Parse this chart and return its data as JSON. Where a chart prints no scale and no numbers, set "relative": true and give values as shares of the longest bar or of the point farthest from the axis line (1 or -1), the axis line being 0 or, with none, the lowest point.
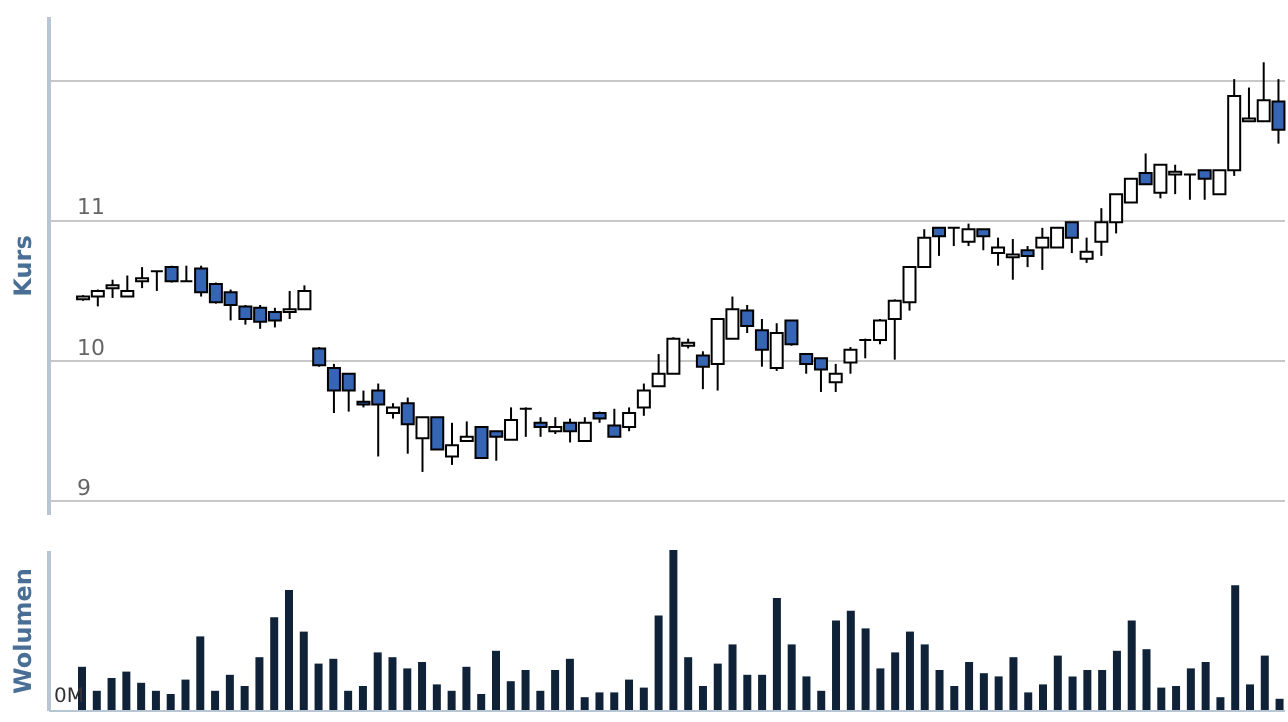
{
  "chart_data": [
    {
      "type": "candlestick",
      "ylabel": "Kurs",
      "colors": [
        "#ffffff",
        "#ffffff",
        "#ffffff",
        "#ffffff",
        "#ffffff",
        "#000000",
        "#3565b4",
        "#000000",
        "#3565b4",
        "#3565b4",
        "#3565b4",
        "#3565b4",
        "#3565b4",
        "#3565b4",
        "#ffffff",
        "#ffffff",
        "#3565b4",
        "#3565b4",
        "#3565b4",
        "#3565b4",
        "#3565b4",
        "#ffffff",
        "#3565b4",
        "#ffffff",
        "#3565b4",
        "#ffffff",
        "#ffffff",
        "#3565b4",
        "#3565b4",
        "#ffffff",
        "#000000",
        "#3565b4",
        "#ffffff",
        "#3565b4",
        "#ffffff",
        "#3565b4",
        "#3565b4",
        "#ffffff",
        "#ffffff",
        "#ffffff",
        "#ffffff",
        "#ffffff",
        "#3565b4",
        "#ffffff",
        "#ffffff",
        "#3565b4",
        "#3565b4",
        "#ffffff",
        "#3565b4",
        "#3565b4",
        "#3565b4",
        "#ffffff",
        "#ffffff",
        "#000000",
        "#ffffff",
        "#ffffff",
        "#ffffff",
        "#ffffff",
        "#3565b4",
        "#000000",
        "#ffffff",
        "#3565b4",
        "#ffffff",
        "#ffffff",
        "#3565b4",
        "#ffffff",
        "#ffffff",
        "#3565b4",
        "#ffffff",
        "#ffffff",
        "#ffffff",
        "#ffffff",
        "#3565b4",
        "#ffffff",
        "#ffffff",
        "#000000",
        "#3565b4",
        "#ffffff",
        "#ffffff",
        "#ffffff",
        "#ffffff",
        "#3565b4"
      ],
      "grid": "y",
      "ylim": [
        8.9,
        12.45
      ],
      "yticks": [
        9,
        10,
        11,
        {
          "value": 12,
          "label": null
        }
      ],
      "categories": [
        null,
        null,
        null,
        null,
        null,
        null,
        null,
        null,
        null,
        null,
        null,
        null,
        null,
        null,
        null,
        null,
        null,
        null,
        null,
        null,
        null,
        null,
        null,
        null,
        null,
        null,
        null,
        null,
        null,
        null,
        null,
        null,
        null,
        null,
        null,
        null,
        null,
        null,
        null,
        null,
        null,
        null,
        null,
        null,
        null,
        null,
        null,
        null,
        null,
        null,
        null,
        null,
        null,
        null,
        null,
        null,
        null,
        null,
        null,
        null,
        null,
        null,
        null,
        null,
        null,
        null,
        null,
        null,
        null,
        null,
        null,
        null,
        null,
        null,
        null,
        null,
        null,
        null,
        null,
        null,
        null,
        null
      ],
      "ohlc": [
        [
          10.43,
          10.46,
          10.42,
          10.45
        ],
        [
          10.45,
          10.5,
          10.38,
          10.49
        ],
        [
          10.51,
          10.57,
          10.44,
          10.53
        ],
        [
          10.45,
          10.6,
          10.45,
          10.49
        ],
        [
          10.56,
          10.66,
          10.51,
          10.58
        ],
        [
          10.63,
          10.63,
          10.49,
          10.63
        ],
        [
          10.66,
          10.67,
          10.55,
          10.56
        ],
        [
          10.56,
          10.67,
          10.56,
          10.56
        ],
        [
          10.65,
          10.67,
          10.45,
          10.48
        ],
        [
          10.54,
          10.55,
          10.4,
          10.41
        ],
        [
          10.48,
          10.5,
          10.28,
          10.39
        ],
        [
          10.38,
          10.39,
          10.25,
          10.29
        ],
        [
          10.37,
          10.39,
          10.22,
          10.27
        ],
        [
          10.34,
          10.37,
          10.23,
          10.28
        ],
        [
          10.34,
          10.49,
          10.29,
          10.36
        ],
        [
          10.36,
          10.53,
          10.36,
          10.49
        ],
        [
          10.08,
          10.09,
          9.95,
          9.96
        ],
        [
          9.94,
          9.97,
          9.62,
          9.78
        ],
        [
          9.9,
          9.9,
          9.63,
          9.78
        ],
        [
          9.7,
          9.78,
          9.66,
          9.68
        ],
        [
          9.78,
          9.83,
          9.31,
          9.68
        ],
        [
          9.62,
          9.69,
          9.58,
          9.66
        ],
        [
          9.69,
          9.73,
          9.33,
          9.54
        ],
        [
          9.44,
          9.59,
          9.2,
          9.59
        ],
        [
          9.59,
          9.59,
          9.36,
          9.36
        ],
        [
          9.31,
          9.55,
          9.25,
          9.39
        ],
        [
          9.42,
          9.56,
          9.42,
          9.45
        ],
        [
          9.52,
          9.52,
          9.3,
          9.3
        ],
        [
          9.49,
          9.49,
          9.28,
          9.45
        ],
        [
          9.43,
          9.66,
          9.43,
          9.57
        ],
        [
          9.65,
          9.66,
          9.45,
          9.65
        ],
        [
          9.55,
          9.59,
          9.45,
          9.52
        ],
        [
          9.49,
          9.59,
          9.47,
          9.52
        ],
        [
          9.55,
          9.58,
          9.41,
          9.49
        ],
        [
          9.42,
          9.59,
          9.42,
          9.55
        ],
        [
          9.62,
          9.63,
          9.55,
          9.58
        ],
        [
          9.53,
          9.65,
          9.45,
          9.45
        ],
        [
          9.52,
          9.66,
          9.49,
          9.62
        ],
        [
          9.66,
          9.83,
          9.6,
          9.78
        ],
        [
          9.81,
          10.04,
          9.81,
          9.9
        ],
        [
          9.9,
          10.16,
          9.9,
          10.15
        ],
        [
          10.1,
          10.15,
          10.08,
          10.12
        ],
        [
          10.03,
          10.06,
          9.79,
          9.95
        ],
        [
          9.97,
          10.29,
          9.78,
          10.29
        ],
        [
          10.15,
          10.45,
          10.15,
          10.36
        ],
        [
          10.35,
          10.39,
          10.19,
          10.24
        ],
        [
          10.21,
          10.29,
          9.95,
          10.07
        ],
        [
          9.94,
          10.26,
          9.92,
          10.19
        ],
        [
          10.28,
          10.28,
          10.1,
          10.11
        ],
        [
          10.04,
          10.04,
          9.9,
          9.97
        ],
        [
          10.01,
          10.01,
          9.77,
          9.93
        ],
        [
          9.84,
          9.97,
          9.77,
          9.9
        ],
        [
          9.98,
          10.09,
          9.9,
          10.07
        ],
        [
          10.14,
          10.15,
          10.01,
          10.14
        ],
        [
          10.14,
          10.29,
          10.11,
          10.28
        ],
        [
          10.29,
          10.43,
          10.0,
          10.42
        ],
        [
          10.41,
          10.66,
          10.35,
          10.66
        ],
        [
          10.66,
          10.93,
          10.66,
          10.87
        ],
        [
          10.94,
          10.94,
          10.74,
          10.88
        ],
        [
          10.94,
          10.94,
          10.81,
          10.94
        ],
        [
          10.84,
          10.97,
          10.81,
          10.93
        ],
        [
          10.93,
          10.93,
          10.78,
          10.88
        ],
        [
          10.76,
          10.87,
          10.67,
          10.8
        ],
        [
          10.73,
          10.86,
          10.57,
          10.75
        ],
        [
          10.78,
          10.81,
          10.66,
          10.74
        ],
        [
          10.8,
          10.94,
          10.64,
          10.87
        ],
        [
          10.8,
          10.94,
          10.8,
          10.94
        ],
        [
          10.98,
          10.98,
          10.76,
          10.87
        ],
        [
          10.72,
          10.87,
          10.69,
          10.77
        ],
        [
          10.84,
          11.08,
          10.74,
          10.98
        ],
        [
          10.98,
          11.18,
          10.9,
          11.18
        ],
        [
          11.12,
          11.29,
          11.12,
          11.29
        ],
        [
          11.33,
          11.47,
          11.25,
          11.25
        ],
        [
          11.19,
          11.39,
          11.15,
          11.39
        ],
        [
          11.32,
          11.39,
          11.18,
          11.34
        ],
        [
          11.32,
          11.32,
          11.14,
          11.32
        ],
        [
          11.35,
          11.35,
          11.14,
          11.29
        ],
        [
          11.18,
          11.35,
          11.18,
          11.35
        ],
        [
          11.35,
          12.0,
          11.31,
          11.88
        ],
        [
          11.7,
          11.94,
          11.7,
          11.72
        ],
        [
          11.7,
          12.12,
          11.7,
          11.85
        ],
        [
          11.84,
          12.0,
          11.54,
          11.64
        ]
      ]
    },
    {
      "type": "bar",
      "ylabel": "Wolumen",
      "relative": true,
      "color": "#0f2238",
      "annotations": [
        "0M"
      ],
      "categories": [
        null,
        null,
        null,
        null,
        null,
        null,
        null,
        null,
        null,
        null,
        null,
        null,
        null,
        null,
        null,
        null,
        null,
        null,
        null,
        null,
        null,
        null,
        null,
        null,
        null,
        null,
        null,
        null,
        null,
        null,
        null,
        null,
        null,
        null,
        null,
        null,
        null,
        null,
        null,
        null,
        null,
        null,
        null,
        null,
        null,
        null,
        null,
        null,
        null,
        null,
        null,
        null,
        null,
        null,
        null,
        null,
        null,
        null,
        null,
        null,
        null,
        null,
        null,
        null,
        null,
        null,
        null,
        null,
        null,
        null,
        null,
        null,
        null,
        null,
        null,
        null,
        null,
        null,
        null,
        null,
        null,
        null
      ],
      "values": [
        0.27,
        0.12,
        0.2,
        0.24,
        0.17,
        0.12,
        0.1,
        0.19,
        0.46,
        0.12,
        0.22,
        0.15,
        0.33,
        0.58,
        0.75,
        0.49,
        0.29,
        0.32,
        0.12,
        0.15,
        0.36,
        0.33,
        0.26,
        0.3,
        0.16,
        0.12,
        0.27,
        0.1,
        0.37,
        0.18,
        0.25,
        0.12,
        0.25,
        0.32,
        0.08,
        0.11,
        0.11,
        0.19,
        0.14,
        0.59,
        1,
        0.33,
        0.15,
        0.29,
        0.41,
        0.22,
        0.22,
        0.7,
        0.41,
        0.21,
        0.12,
        0.56,
        0.62,
        0.51,
        0.26,
        0.36,
        0.49,
        0.41,
        0.25,
        0.15,
        0.3,
        0.23,
        0.21,
        0.33,
        0.11,
        0.16,
        0.34,
        0.21,
        0.25,
        0.25,
        0.37,
        0.56,
        0.38,
        0.14,
        0.15,
        0.26,
        0.3,
        0.08,
        0.78,
        0.16,
        0.34,
        0.07
      ]
    }
  ]
}
